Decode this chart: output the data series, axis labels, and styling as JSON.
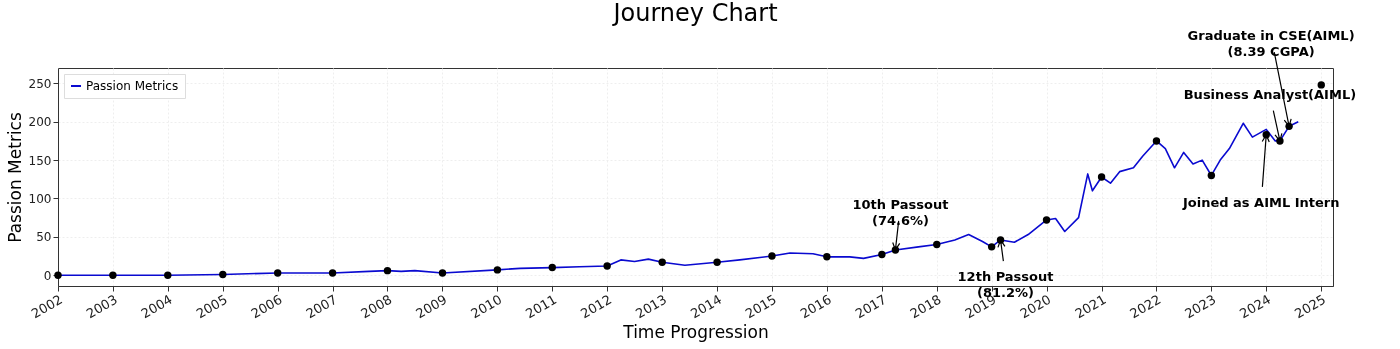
{
  "chart_data": {
    "type": "line",
    "title": "Journey Chart",
    "xlabel": "Time Progression",
    "ylabel": "Passion Metrics",
    "xlim": [
      "2002-01-01",
      "2025-03-20"
    ],
    "ylim": [
      -14,
      270
    ],
    "xticks": [
      "2002",
      "2003",
      "2004",
      "2005",
      "2006",
      "2007",
      "2008",
      "2009",
      "2010",
      "2011",
      "2012",
      "2013",
      "2014",
      "2015",
      "2016",
      "2017",
      "2018",
      "2019",
      "2020",
      "2021",
      "2022",
      "2023",
      "2024",
      "2025"
    ],
    "yticks": [
      0,
      50,
      100,
      150,
      200,
      250
    ],
    "grid": true,
    "legend": "top left",
    "series": [
      {
        "name": "Passion Metrics",
        "color": "#0a0ad0",
        "x": [
          "2002-01",
          "2004-01",
          "2005-01",
          "2006-01",
          "2007-01",
          "2007-09",
          "2008-01",
          "2008-04",
          "2008-07",
          "2009-01",
          "2010-01",
          "2010-06",
          "2011-01",
          "2011-07",
          "2012-01",
          "2012-04",
          "2012-07",
          "2012-10",
          "2013-01",
          "2013-06",
          "2014-01",
          "2014-06",
          "2015-01",
          "2015-05",
          "2015-10",
          "2016-01",
          "2016-06",
          "2016-09",
          "2017-01",
          "2017-04",
          "2017-09",
          "2018-01",
          "2018-05",
          "2018-08",
          "2018-11",
          "2019-01",
          "2019-03",
          "2019-06",
          "2019-09",
          "2020-01",
          "2020-03",
          "2020-05",
          "2020-08",
          "2020-10",
          "2020-11",
          "2021-01",
          "2021-03",
          "2021-05",
          "2021-08",
          "2021-10",
          "2022-01",
          "2022-03",
          "2022-05",
          "2022-07",
          "2022-09",
          "2022-11",
          "2023-01",
          "2023-03",
          "2023-05",
          "2023-08",
          "2023-10",
          "2024-01",
          "2024-03",
          "2024-04",
          "2024-06",
          "2024-08"
        ],
        "values": [
          0,
          0,
          1,
          3,
          3,
          5,
          6,
          5,
          6,
          3,
          7,
          9,
          10,
          11,
          12,
          20,
          18,
          21,
          17,
          13,
          17,
          20,
          25,
          29,
          28,
          24,
          24,
          22,
          27,
          33,
          37,
          40,
          46,
          53,
          44,
          37,
          46,
          43,
          53,
          72,
          74,
          57,
          75,
          132,
          110,
          128,
          120,
          135,
          140,
          155,
          175,
          165,
          140,
          160,
          145,
          150,
          130,
          150,
          165,
          198,
          180,
          190,
          175,
          175,
          194,
          200
        ]
      },
      {
        "type": "scatter",
        "color": "#000000",
        "marker": "circle",
        "x": [
          "2002-01",
          "2003-01",
          "2004-01",
          "2005-01",
          "2006-01",
          "2007-01",
          "2008-01",
          "2009-01",
          "2010-01",
          "2011-01",
          "2012-01",
          "2013-01",
          "2014-01",
          "2015-01",
          "2016-01",
          "2017-01",
          "2017-04",
          "2018-01",
          "2019-01",
          "2019-03",
          "2020-01",
          "2021-01",
          "2022-01",
          "2023-01",
          "2024-01",
          "2024-04",
          "2024-06",
          "2025-01"
        ],
        "values": [
          0,
          0,
          0,
          1,
          3,
          3,
          6,
          3,
          7,
          10,
          12,
          17,
          17,
          25,
          24,
          27,
          33,
          40,
          37,
          46,
          72,
          128,
          175,
          130,
          183,
          175,
          194,
          248
        ]
      }
    ],
    "annotations": [
      {
        "text": "10th Passout\n(74.6%)",
        "x": "2017-04",
        "y": 33
      },
      {
        "text": "12th Passout\n(81.2%)",
        "x": "2019-03",
        "y": 46
      },
      {
        "text": "Joined as AIML Intern",
        "x": "2024-01",
        "y": 183
      },
      {
        "text": "Business Analyst(AIML)",
        "x": "2024-04",
        "y": 175
      },
      {
        "text": "Graduate in CSE(AIML)\n(8.39 CGPA)",
        "x": "2024-06",
        "y": 194
      }
    ]
  }
}
